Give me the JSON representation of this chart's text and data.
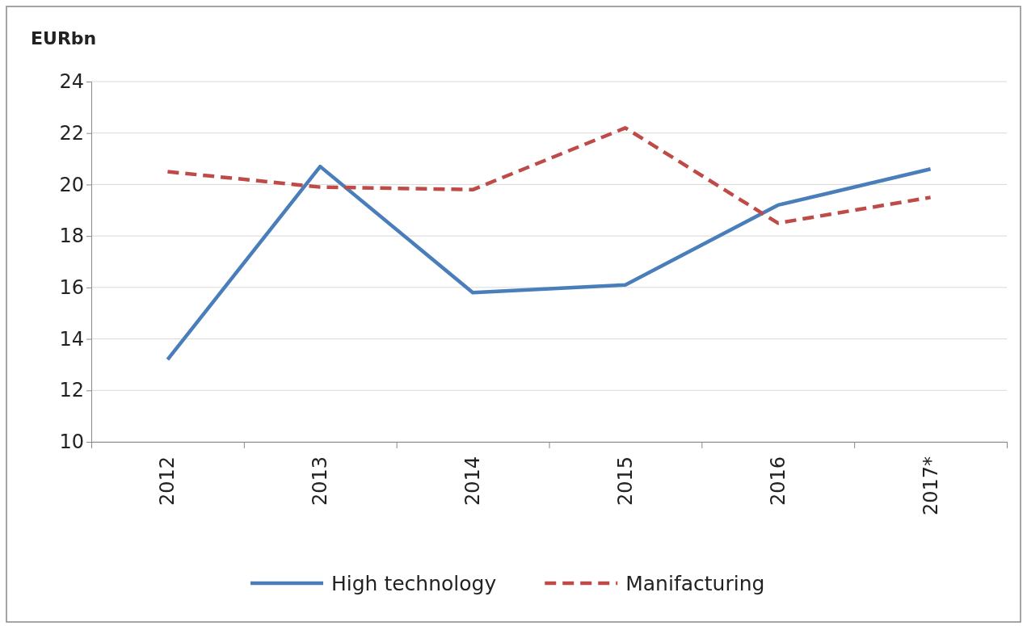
{
  "chart_data": {
    "type": "line",
    "ylabel": "EURbn",
    "categories": [
      "2012",
      "2013",
      "2014",
      "2015",
      "2016",
      "2017*"
    ],
    "series": [
      {
        "name": "High technology",
        "color": "#4a7ebb",
        "values": [
          13.2,
          20.7,
          15.8,
          16.1,
          19.2,
          20.6
        ],
        "line_style": "solid"
      },
      {
        "name": "Manifacturing",
        "color": "#be4b48",
        "values": [
          20.5,
          19.9,
          19.8,
          22.2,
          18.5,
          19.5
        ],
        "line_style": "dashed"
      }
    ],
    "ylim": [
      10,
      24
    ],
    "yticks": [
      10,
      12,
      14,
      16,
      18,
      20,
      22,
      24
    ],
    "grid": "y",
    "legend": "bottom",
    "marker": "none"
  }
}
